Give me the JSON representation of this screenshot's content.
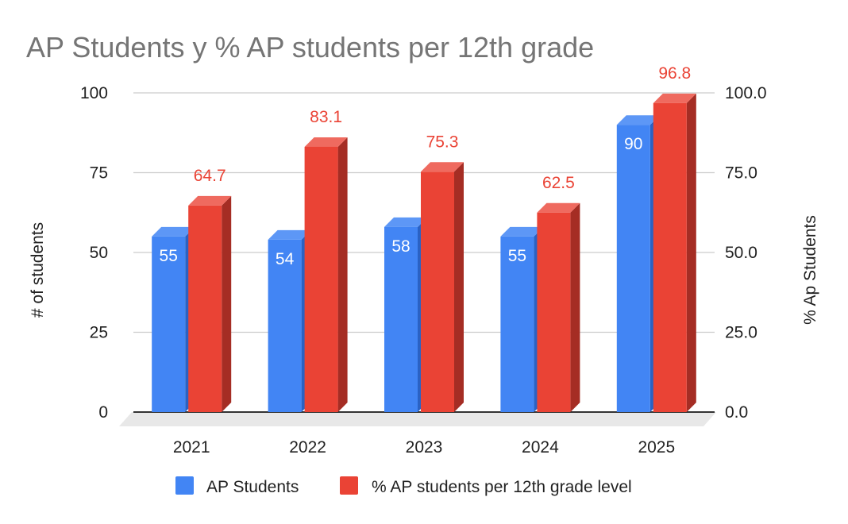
{
  "chart_data": {
    "type": "bar",
    "title": "AP Students y % AP students per 12th grade",
    "categories": [
      "2021",
      "2022",
      "2023",
      "2024",
      "2025"
    ],
    "series": [
      {
        "name": "AP Students",
        "values": [
          55,
          54,
          58,
          55,
          90
        ],
        "labels": [
          "55",
          "54",
          "58",
          "55",
          "90"
        ],
        "axis": "left",
        "color": "#4285f4",
        "side_color": "#2a62c4",
        "top_color": "#5d97f6"
      },
      {
        "name": "% AP students per 12th grade level",
        "values": [
          64.7,
          83.1,
          75.3,
          62.5,
          96.8
        ],
        "labels": [
          "64.7",
          "83.1",
          "75.3",
          "62.5",
          "96.8"
        ],
        "axis": "right",
        "color": "#ea4335",
        "side_color": "#a52d24",
        "top_color": "#ef6a5f"
      }
    ],
    "y_left": {
      "label": "# of students",
      "range": [
        0,
        100
      ],
      "ticks": [
        "0",
        "25",
        "50",
        "75",
        "100"
      ]
    },
    "y_right": {
      "label": "% Ap Students",
      "range": [
        0,
        100
      ],
      "ticks": [
        "0.0",
        "25.0",
        "50.0",
        "75.0",
        "100.0"
      ]
    },
    "grid": true,
    "legend_position": "bottom",
    "title_color": "#757575",
    "label_text_color": "#222222",
    "gridline_color": "#cccccc",
    "floor_color": "#e8e8e8"
  }
}
